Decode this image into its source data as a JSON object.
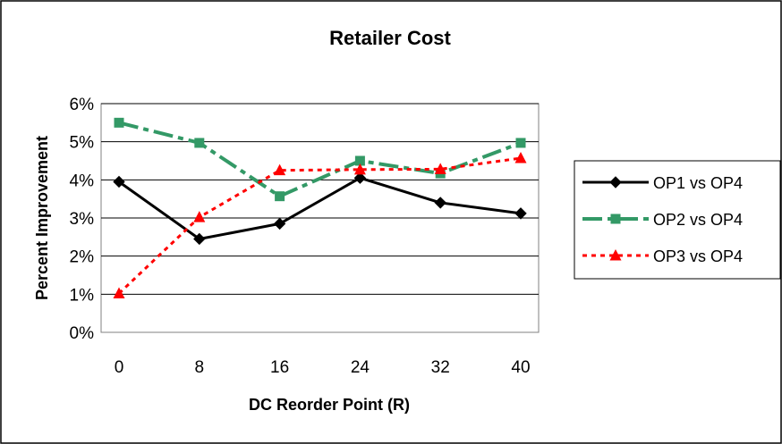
{
  "chart_data": {
    "type": "line",
    "title": "Retailer Cost",
    "xlabel": "DC Reorder Point (R)",
    "ylabel": "Percent Improvement",
    "x": [
      0,
      8,
      16,
      24,
      32,
      40
    ],
    "x_tick_labels": [
      "0",
      "8",
      "16",
      "24",
      "32",
      "40"
    ],
    "ylim": [
      0,
      6
    ],
    "y_ticks": [
      0,
      1,
      2,
      3,
      4,
      5,
      6
    ],
    "y_tick_labels": [
      "0%",
      "1%",
      "2%",
      "3%",
      "4%",
      "5%",
      "6%"
    ],
    "y_unit": "%",
    "grid": "horizontal",
    "legend_position": "right",
    "series": [
      {
        "name": "OP1 vs OP4",
        "values": [
          3.95,
          2.45,
          2.85,
          4.05,
          3.4,
          3.12
        ],
        "color": "#000000",
        "line_style": "solid",
        "marker": "diamond"
      },
      {
        "name": "OP2 vs OP4",
        "values": [
          5.5,
          4.97,
          3.57,
          4.5,
          4.17,
          4.97
        ],
        "color": "#339966",
        "line_style": "dash-dot",
        "marker": "square"
      },
      {
        "name": "OP3 vs OP4",
        "values": [
          1.02,
          3.02,
          4.25,
          4.27,
          4.28,
          4.57
        ],
        "color": "#ff0000",
        "line_style": "dotted",
        "marker": "triangle"
      }
    ]
  }
}
